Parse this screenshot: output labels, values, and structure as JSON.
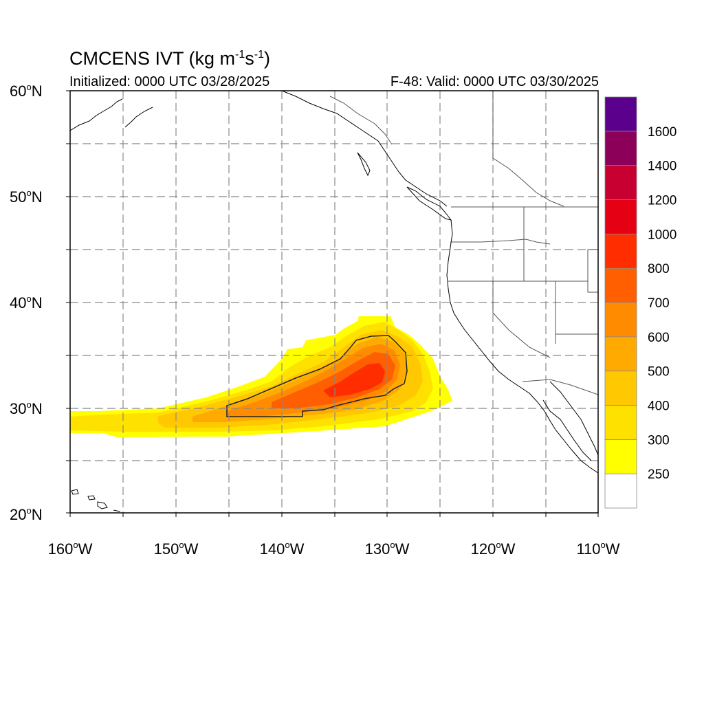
{
  "title": {
    "main": "CMCENS IVT (kg m",
    "exp1": "-1",
    "mid": "s",
    "exp2": "-1",
    "close": ")"
  },
  "subtitle_left": "Initialized: 0000 UTC 03/28/2025",
  "subtitle_right": "F-48: Valid: 0000 UTC 03/30/2025",
  "lat_labels": [
    {
      "num": "60",
      "deg": "o",
      "hemi": "N",
      "value": 60
    },
    {
      "num": "50",
      "deg": "o",
      "hemi": "N",
      "value": 50
    },
    {
      "num": "40",
      "deg": "o",
      "hemi": "N",
      "value": 40
    },
    {
      "num": "30",
      "deg": "o",
      "hemi": "N",
      "value": 30
    },
    {
      "num": "20",
      "deg": "o",
      "hemi": "N",
      "value": 20
    }
  ],
  "lon_labels": [
    {
      "num": "160",
      "deg": "o",
      "hemi": "W",
      "value": -160
    },
    {
      "num": "150",
      "deg": "o",
      "hemi": "W",
      "value": -150
    },
    {
      "num": "140",
      "deg": "o",
      "hemi": "W",
      "value": -140
    },
    {
      "num": "130",
      "deg": "o",
      "hemi": "W",
      "value": -130
    },
    {
      "num": "120",
      "deg": "o",
      "hemi": "W",
      "value": -120
    },
    {
      "num": "110",
      "deg": "o",
      "hemi": "W",
      "value": -110
    }
  ],
  "map_extent": {
    "lon_min": -160,
    "lon_max": -110,
    "lat_min": 20,
    "lat_max": 60
  },
  "colorbar": {
    "colors": [
      "#ffffff",
      "#ffff00",
      "#ffe100",
      "#ffc800",
      "#ffaa00",
      "#ff8c00",
      "#ff5f00",
      "#ff2d00",
      "#e60014",
      "#c80032",
      "#8c005a",
      "#5a008c"
    ],
    "labels": [
      "250",
      "300",
      "400",
      "500",
      "600",
      "700",
      "800",
      "1000",
      "1200",
      "1400",
      "1600"
    ]
  },
  "colors": {
    "land_line": "#000000",
    "grid_line": "#888888",
    "state_line": "#555555"
  }
}
